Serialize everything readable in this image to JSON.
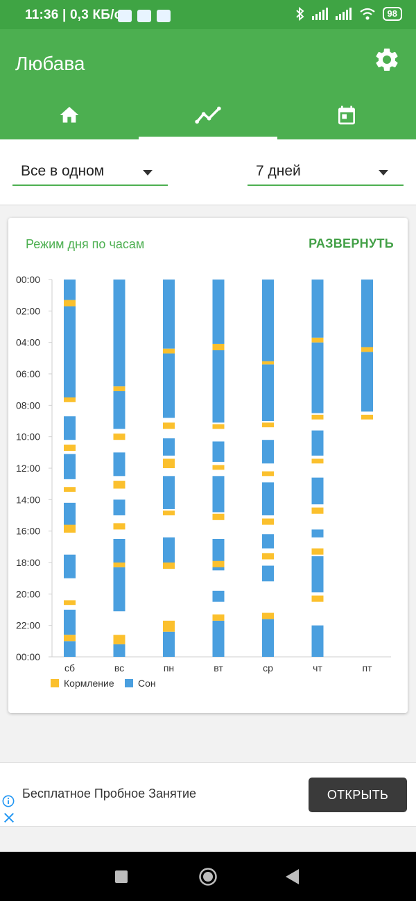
{
  "status_bar": {
    "time": "11:36 | 0,3 КБ/с",
    "battery": "98",
    "bluetooth_icon": "bluetooth-icon"
  },
  "header": {
    "title": "Любава",
    "settings_icon": "gear-icon"
  },
  "tabs": [
    {
      "icon": "home-icon",
      "active": false
    },
    {
      "icon": "trend-icon",
      "active": true
    },
    {
      "icon": "calendar-icon",
      "active": false
    }
  ],
  "filters": {
    "type_value": "Все в одном",
    "period_value": "7 дней"
  },
  "card": {
    "title": "Режим дня по часам",
    "expand_label": "РАЗВЕРНУТЬ"
  },
  "chart_data": {
    "type": "bar",
    "categories": [
      "сб",
      "вс",
      "пн",
      "вт",
      "ср",
      "чт",
      "пт"
    ],
    "y_ticks": [
      "00:00",
      "02:00",
      "04:00",
      "06:00",
      "08:00",
      "10:00",
      "12:00",
      "14:00",
      "16:00",
      "18:00",
      "20:00",
      "22:00",
      "00:00"
    ],
    "ylim": [
      0,
      24
    ],
    "unit": "hours",
    "legend": {
      "position": "bottom-left"
    },
    "colors": {
      "feeding": "#fbc02d",
      "sleep": "#4a9fdf"
    },
    "series": [
      {
        "name": "Кормление",
        "intervals": [
          [
            [
              1.3,
              1.7
            ],
            [
              7.5,
              7.8
            ],
            [
              10.5,
              10.9
            ],
            [
              13.2,
              13.5
            ],
            [
              15.6,
              16.1
            ],
            [
              20.4,
              20.7
            ],
            [
              22.6,
              23.0
            ]
          ],
          [
            [
              6.8,
              7.1
            ],
            [
              9.8,
              10.2
            ],
            [
              12.8,
              13.3
            ],
            [
              15.5,
              15.9
            ],
            [
              18.0,
              18.3
            ],
            [
              22.6,
              23.2
            ]
          ],
          [
            [
              4.4,
              4.7
            ],
            [
              9.1,
              9.5
            ],
            [
              11.4,
              12.0
            ],
            [
              14.7,
              15.0
            ],
            [
              18.0,
              18.4
            ],
            [
              21.7,
              22.4
            ]
          ],
          [
            [
              4.1,
              4.5
            ],
            [
              9.2,
              9.5
            ],
            [
              11.8,
              12.1
            ],
            [
              14.9,
              15.3
            ],
            [
              17.9,
              18.3
            ],
            [
              21.3,
              21.7
            ]
          ],
          [
            [
              5.2,
              5.4
            ],
            [
              9.1,
              9.4
            ],
            [
              12.2,
              12.5
            ],
            [
              15.2,
              15.6
            ],
            [
              17.4,
              17.8
            ],
            [
              21.2,
              21.6
            ]
          ],
          [
            [
              3.7,
              4.0
            ],
            [
              8.6,
              8.9
            ],
            [
              11.4,
              11.7
            ],
            [
              14.5,
              14.9
            ],
            [
              17.1,
              17.5
            ],
            [
              20.1,
              20.5
            ]
          ],
          [
            [
              4.3,
              4.6
            ],
            [
              8.6,
              8.9
            ]
          ]
        ]
      },
      {
        "name": "Сон",
        "intervals": [
          [
            [
              0.0,
              1.3
            ],
            [
              1.7,
              7.5
            ],
            [
              8.7,
              10.2
            ],
            [
              11.1,
              12.7
            ],
            [
              14.2,
              16.0
            ],
            [
              17.5,
              19.0
            ],
            [
              21.0,
              22.6
            ],
            [
              23.0,
              24.0
            ]
          ],
          [
            [
              0.0,
              6.8
            ],
            [
              7.1,
              9.5
            ],
            [
              11.0,
              12.5
            ],
            [
              14.0,
              15.0
            ],
            [
              16.5,
              18.0
            ],
            [
              18.3,
              21.1
            ],
            [
              23.2,
              24.0
            ]
          ],
          [
            [
              0.0,
              4.4
            ],
            [
              4.7,
              8.8
            ],
            [
              10.1,
              11.2
            ],
            [
              12.5,
              14.6
            ],
            [
              16.4,
              18.4
            ],
            [
              22.4,
              24.0
            ]
          ],
          [
            [
              0.0,
              4.1
            ],
            [
              4.5,
              9.1
            ],
            [
              10.3,
              11.6
            ],
            [
              12.5,
              14.8
            ],
            [
              16.5,
              18.5
            ],
            [
              19.8,
              20.5
            ],
            [
              21.7,
              24.0
            ]
          ],
          [
            [
              0.0,
              5.2
            ],
            [
              5.4,
              9.0
            ],
            [
              10.2,
              11.7
            ],
            [
              12.9,
              15.0
            ],
            [
              16.2,
              17.1
            ],
            [
              18.2,
              19.2
            ],
            [
              21.6,
              24.0
            ]
          ],
          [
            [
              0.0,
              3.7
            ],
            [
              4.0,
              8.5
            ],
            [
              9.6,
              11.2
            ],
            [
              12.6,
              14.3
            ],
            [
              15.9,
              16.4
            ],
            [
              17.6,
              19.9
            ],
            [
              22.0,
              24.0
            ]
          ],
          [
            [
              0.0,
              4.3
            ],
            [
              4.6,
              8.4
            ]
          ]
        ]
      }
    ]
  },
  "ad": {
    "text": "Бесплатное Пробное Занятие",
    "button": "ОТКРЫТЬ"
  }
}
